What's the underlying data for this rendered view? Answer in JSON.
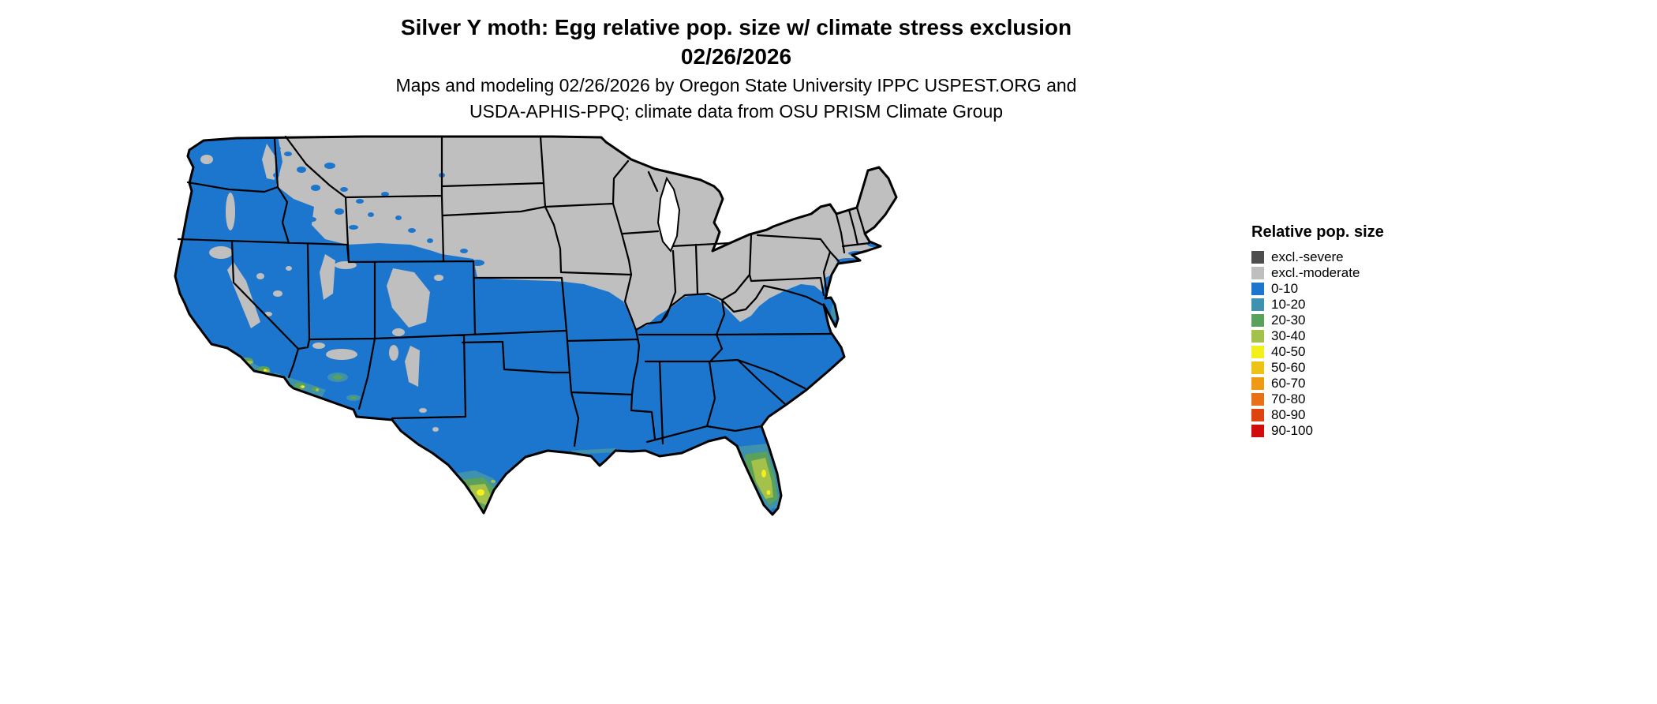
{
  "header": {
    "title_line1": "Silver Y moth: Egg relative pop. size w/ climate stress exclusion",
    "title_line2": "02/26/2026",
    "subtitle_line1": "Maps and modeling 02/26/2026 by Oregon State University IPPC USPEST.ORG and",
    "subtitle_line2": "USDA-APHIS-PPQ; climate data from OSU PRISM Climate Group"
  },
  "legend": {
    "title": "Relative pop. size",
    "items": [
      {
        "label": "excl.-severe",
        "color": "#4d4d4d"
      },
      {
        "label": "excl.-moderate",
        "color": "#bfbfbf"
      },
      {
        "label": "0-10",
        "color": "#1d76cd"
      },
      {
        "label": "10-20",
        "color": "#3f92ad"
      },
      {
        "label": "20-30",
        "color": "#5aa15a"
      },
      {
        "label": "30-40",
        "color": "#a3c14b"
      },
      {
        "label": "40-50",
        "color": "#f2ef1c"
      },
      {
        "label": "50-60",
        "color": "#eec117"
      },
      {
        "label": "60-70",
        "color": "#ef9a14"
      },
      {
        "label": "70-80",
        "color": "#e87117"
      },
      {
        "label": "80-90",
        "color": "#de4310"
      },
      {
        "label": "90-100",
        "color": "#d10c0c"
      }
    ]
  },
  "map": {
    "colors": {
      "suitable": "#1d76cd",
      "excluded": "#bfbfbf",
      "pop10": "#3f92ad",
      "pop20": "#5aa15a",
      "pop30": "#a3c14b",
      "pop40": "#f2ef1c",
      "water": "#ffffff",
      "border": "#000000"
    }
  }
}
